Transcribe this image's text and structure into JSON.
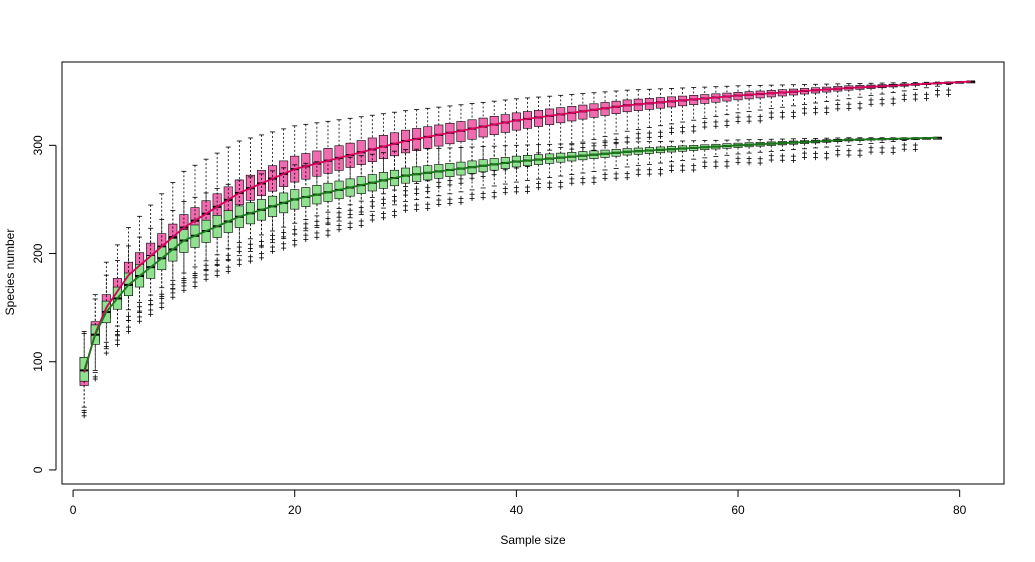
{
  "chart_data": {
    "type": "boxplot",
    "title": "",
    "xlabel": "Sample size",
    "ylabel": "Species number",
    "xlim": [
      -1,
      84
    ],
    "ylim": [
      -13,
      377
    ],
    "x_ticks": [
      0,
      20,
      40,
      60,
      80
    ],
    "y_ticks": [
      0,
      100,
      200,
      300
    ],
    "grid": false,
    "legend": "none",
    "note": "values are estimated from the figure; each series is a box per sample size, summarized by anchor points and interpolated",
    "series": [
      {
        "name": "",
        "color": "#f06bb0",
        "line_color": "#d8005a",
        "n_max": 81,
        "anchors": [
          {
            "x": 1,
            "median": 90,
            "q1": 78,
            "q3": 104,
            "wlo": 55,
            "whi": 128
          },
          {
            "x": 2,
            "median": 126,
            "q1": 118,
            "q3": 137,
            "wlo": 92,
            "whi": 162
          },
          {
            "x": 3,
            "median": 150,
            "q1": 141,
            "q3": 162,
            "wlo": 118,
            "whi": 192
          },
          {
            "x": 5,
            "median": 180,
            "q1": 171,
            "q3": 192,
            "wlo": 148,
            "whi": 224
          },
          {
            "x": 10,
            "median": 224,
            "q1": 214,
            "q3": 236,
            "wlo": 182,
            "whi": 276
          },
          {
            "x": 15,
            "median": 256,
            "q1": 245,
            "q3": 268,
            "wlo": 210,
            "whi": 304
          },
          {
            "x": 20,
            "median": 278,
            "q1": 266,
            "q3": 290,
            "wlo": 228,
            "whi": 318
          },
          {
            "x": 30,
            "median": 304,
            "q1": 293,
            "q3": 314,
            "wlo": 262,
            "whi": 332
          },
          {
            "x": 40,
            "median": 323,
            "q1": 314,
            "q3": 330,
            "wlo": 288,
            "whi": 343
          },
          {
            "x": 50,
            "median": 337,
            "q1": 331,
            "q3": 342,
            "wlo": 313,
            "whi": 351
          },
          {
            "x": 60,
            "median": 346,
            "q1": 342,
            "q3": 349,
            "wlo": 330,
            "whi": 355
          },
          {
            "x": 70,
            "median": 353,
            "q1": 351,
            "q3": 355,
            "wlo": 343,
            "whi": 357
          },
          {
            "x": 81,
            "median": 359,
            "q1": 359,
            "q3": 359,
            "wlo": 359,
            "whi": 359
          }
        ]
      },
      {
        "name": "",
        "color": "#8fe08f",
        "line_color": "#1a7a1a",
        "n_max": 78,
        "anchors": [
          {
            "x": 1,
            "median": 92,
            "q1": 82,
            "q3": 104,
            "wlo": 58,
            "whi": 126
          },
          {
            "x": 2,
            "median": 125,
            "q1": 116,
            "q3": 134,
            "wlo": 90,
            "whi": 158
          },
          {
            "x": 3,
            "median": 146,
            "q1": 136,
            "q3": 156,
            "wlo": 112,
            "whi": 180
          },
          {
            "x": 5,
            "median": 171,
            "q1": 161,
            "q3": 182,
            "wlo": 138,
            "whi": 207
          },
          {
            "x": 10,
            "median": 212,
            "q1": 201,
            "q3": 222,
            "wlo": 175,
            "whi": 248
          },
          {
            "x": 15,
            "median": 234,
            "q1": 224,
            "q3": 244,
            "wlo": 198,
            "whi": 268
          },
          {
            "x": 20,
            "median": 250,
            "q1": 241,
            "q3": 259,
            "wlo": 218,
            "whi": 282
          },
          {
            "x": 30,
            "median": 272,
            "q1": 265,
            "q3": 279,
            "wlo": 248,
            "whi": 296
          },
          {
            "x": 40,
            "median": 285,
            "q1": 280,
            "q3": 290,
            "wlo": 266,
            "whi": 300
          },
          {
            "x": 50,
            "median": 294,
            "q1": 291,
            "q3": 297,
            "wlo": 280,
            "whi": 303
          },
          {
            "x": 60,
            "median": 300,
            "q1": 298,
            "q3": 302,
            "wlo": 292,
            "whi": 305
          },
          {
            "x": 70,
            "median": 305,
            "q1": 304,
            "q3": 306,
            "wlo": 300,
            "whi": 307
          },
          {
            "x": 78,
            "median": 307,
            "q1": 307,
            "q3": 307,
            "wlo": 307,
            "whi": 307
          }
        ]
      }
    ]
  }
}
